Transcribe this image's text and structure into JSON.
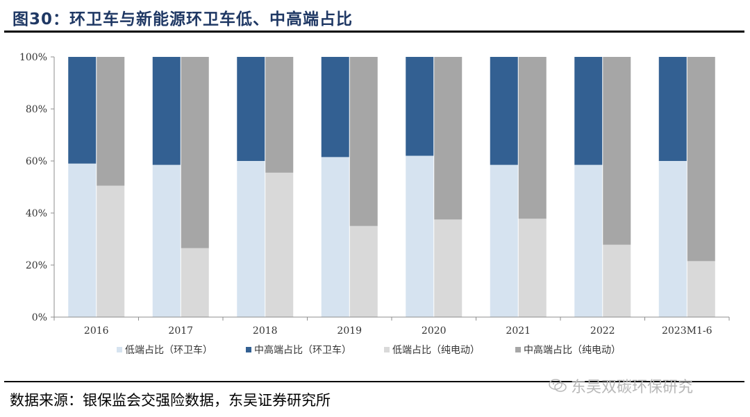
{
  "figure": {
    "title": "图30：环卫车与新能源环卫车低、中高端占比",
    "source": "数据来源：银保监会交强险数据，东吴证券研究所",
    "watermark": "东吴双碳环保研究"
  },
  "chart_data": {
    "type": "bar",
    "stacked": true,
    "percent": true,
    "categories": [
      "2016",
      "2017",
      "2018",
      "2019",
      "2020",
      "2021",
      "2022",
      "2023M1-6"
    ],
    "ylim": [
      0,
      100
    ],
    "yticks": [
      "0%",
      "20%",
      "40%",
      "60%",
      "80%",
      "100%"
    ],
    "legend_position": "bottom",
    "groups": [
      {
        "series": [
          {
            "name": "低端占比（环卫车）",
            "color": "#d6e3f0",
            "values": [
              59,
              58.5,
              60,
              61.5,
              62,
              58.5,
              58.5,
              60
            ]
          },
          {
            "name": "中高端占比（环卫车）",
            "color": "#336092",
            "values": [
              41,
              41.5,
              40,
              38.5,
              38,
              41.5,
              41.5,
              40
            ]
          }
        ]
      },
      {
        "series": [
          {
            "name": "低端占比（纯电动）",
            "color": "#d9d9d9",
            "values": [
              50.5,
              26.5,
              55.5,
              35,
              37.5,
              37.8,
              27.8,
              21.5
            ]
          },
          {
            "name": "中高端占比（纯电动）",
            "color": "#a6a6a6",
            "values": [
              49.5,
              73.5,
              44.5,
              65,
              62.5,
              62.2,
              72.2,
              78.5
            ]
          }
        ]
      }
    ]
  }
}
